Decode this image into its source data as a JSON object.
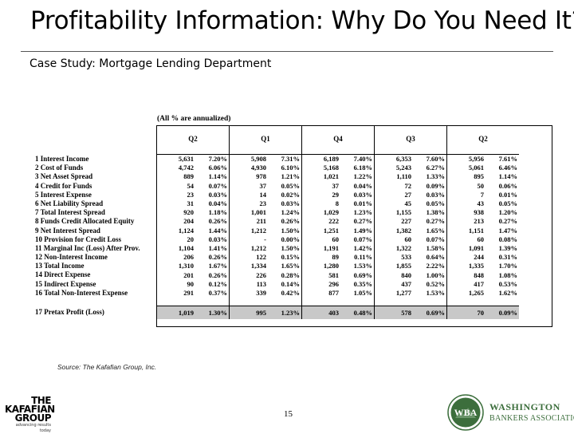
{
  "slide": {
    "title": "Profitability Information: Why Do You Need It?",
    "subtitle": "Case Study: Mortgage Lending Department",
    "annualized_note": "(All % are annualized)",
    "source": "Source: The Kafafian Group, Inc.",
    "page_number": "15"
  },
  "logos": {
    "kafafian": {
      "line1": "THE",
      "line2": "KAFAFIAN",
      "line3": "GROUP",
      "tagline": "advancing results today"
    },
    "wba": {
      "seal_text": "WBA",
      "line1": "WASHINGTON",
      "line2": "BANKERS ASSOCIATION"
    }
  },
  "colors": {
    "seal_green": "#3c6e3c",
    "pretax_row": "#c8c8c8"
  },
  "table": {
    "columns": [
      "Q2",
      "Q1",
      "Q4",
      "Q3",
      "Q2"
    ],
    "rows": [
      {
        "label": "1  Interest Income",
        "cells": [
          "5,631",
          "7.20%",
          "5,908",
          "7.31%",
          "6,189",
          "7.40%",
          "6,353",
          "7.60%",
          "5,956",
          "7.61%"
        ]
      },
      {
        "label": "2  Cost of Funds",
        "cells": [
          "4,742",
          "6.06%",
          "4,930",
          "6.10%",
          "5,168",
          "6.18%",
          "5,243",
          "6.27%",
          "5,061",
          "6.46%"
        ]
      },
      {
        "label": "3     Net Asset Spread",
        "cells": [
          "889",
          "1.14%",
          "978",
          "1.21%",
          "1,021",
          "1.22%",
          "1,110",
          "1.33%",
          "895",
          "1.14%"
        ]
      },
      {
        "label": "4  Credit for Funds",
        "cells": [
          "54",
          "0.07%",
          "37",
          "0.05%",
          "37",
          "0.04%",
          "72",
          "0.09%",
          "50",
          "0.06%"
        ]
      },
      {
        "label": "5  Interest Expense",
        "cells": [
          "23",
          "0.03%",
          "14",
          "0.02%",
          "29",
          "0.03%",
          "27",
          "0.03%",
          "7",
          "0.01%"
        ]
      },
      {
        "label": "6     Net Liability Spread",
        "cells": [
          "31",
          "0.04%",
          "23",
          "0.03%",
          "8",
          "0.01%",
          "45",
          "0.05%",
          "43",
          "0.05%"
        ]
      },
      {
        "label": "7     Total Interest Spread",
        "cells": [
          "920",
          "1.18%",
          "1,001",
          "1.24%",
          "1,029",
          "1.23%",
          "1,155",
          "1.38%",
          "938",
          "1.20%"
        ]
      },
      {
        "label": "8  Funds Credit Allocated Equity",
        "cells": [
          "204",
          "0.26%",
          "211",
          "0.26%",
          "222",
          "0.27%",
          "227",
          "0.27%",
          "213",
          "0.27%"
        ]
      },
      {
        "label": "9     Net Interest Spread",
        "cells": [
          "1,124",
          "1.44%",
          "1,212",
          "1.50%",
          "1,251",
          "1.49%",
          "1,382",
          "1.65%",
          "1,151",
          "1.47%"
        ]
      },
      {
        "label": "10 Provision for Credit Loss",
        "cells": [
          "20",
          "0.03%",
          "-",
          "0.00%",
          "60",
          "0.07%",
          "60",
          "0.07%",
          "60",
          "0.08%"
        ]
      },
      {
        "label": "11 Marginal Inc (Loss) After Prov.",
        "cells": [
          "1,104",
          "1.41%",
          "1,212",
          "1.50%",
          "1,191",
          "1.42%",
          "1,322",
          "1.58%",
          "1,091",
          "1.39%"
        ]
      },
      {
        "label": "12 Non-Interest Income",
        "cells": [
          "206",
          "0.26%",
          "122",
          "0.15%",
          "89",
          "0.11%",
          "533",
          "0.64%",
          "244",
          "0.31%"
        ]
      },
      {
        "label": "13     Total Income",
        "cells": [
          "1,310",
          "1.67%",
          "1,334",
          "1.65%",
          "1,280",
          "1.53%",
          "1,855",
          "2.22%",
          "1,335",
          "1.70%"
        ]
      },
      {
        "label": "14 Direct Expense",
        "cells": [
          "201",
          "0.26%",
          "226",
          "0.28%",
          "581",
          "0.69%",
          "840",
          "1.00%",
          "848",
          "1.08%"
        ]
      },
      {
        "label": "15 Indirect Expense",
        "cells": [
          "90",
          "0.12%",
          "113",
          "0.14%",
          "296",
          "0.35%",
          "437",
          "0.52%",
          "417",
          "0.53%"
        ]
      },
      {
        "label": "16     Total Non-Interest Expense",
        "cells": [
          "291",
          "0.37%",
          "339",
          "0.42%",
          "877",
          "1.05%",
          "1,277",
          "1.53%",
          "1,265",
          "1.62%"
        ]
      }
    ],
    "pretax": {
      "label": "17 Pretax Profit (Loss)",
      "cells": [
        "1,019",
        "1.30%",
        "995",
        "1.23%",
        "403",
        "0.48%",
        "578",
        "0.69%",
        "70",
        "0.09%"
      ]
    }
  }
}
